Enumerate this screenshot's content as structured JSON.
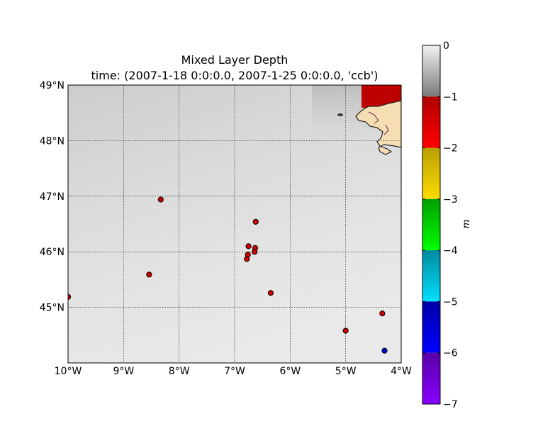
{
  "chart_data": {
    "type": "scatter",
    "title": "Mixed Layer Depth",
    "subtitle": "time: (2007-1-18 0:0:0.0, 2007-1-25 0:0:0.0, 'ccb')",
    "xlim": [
      -10,
      -4
    ],
    "ylim": [
      44,
      49
    ],
    "grid": true,
    "x_ticks": [
      {
        "value": -10,
        "label": "10°W"
      },
      {
        "value": -9,
        "label": "9°W"
      },
      {
        "value": -8,
        "label": "8°W"
      },
      {
        "value": -7,
        "label": "7°W"
      },
      {
        "value": -6,
        "label": "6°W"
      },
      {
        "value": -5,
        "label": "5°W"
      },
      {
        "value": -4,
        "label": "4°W"
      }
    ],
    "y_ticks": [
      {
        "value": 45,
        "label": "45°N"
      },
      {
        "value": 46,
        "label": "46°N"
      },
      {
        "value": 47,
        "label": "47°N"
      },
      {
        "value": 48,
        "label": "48°N"
      },
      {
        "value": 49,
        "label": "49°N"
      }
    ],
    "points": [
      {
        "lon": -10.0,
        "lat": 45.19,
        "value": -1.5
      },
      {
        "lon": -8.54,
        "lat": 45.59,
        "value": -1.5
      },
      {
        "lon": -8.33,
        "lat": 46.94,
        "value": -1.5
      },
      {
        "lon": -6.62,
        "lat": 46.54,
        "value": -1.5
      },
      {
        "lon": -6.75,
        "lat": 46.1,
        "value": -1.5
      },
      {
        "lon": -6.63,
        "lat": 46.07,
        "value": -1.5
      },
      {
        "lon": -6.64,
        "lat": 46.0,
        "value": -1.5
      },
      {
        "lon": -6.76,
        "lat": 45.95,
        "value": -1.5
      },
      {
        "lon": -6.78,
        "lat": 45.87,
        "value": -1.5
      },
      {
        "lon": -6.35,
        "lat": 45.26,
        "value": -1.5
      },
      {
        "lon": -5.0,
        "lat": 44.58,
        "value": -1.5
      },
      {
        "lon": -4.34,
        "lat": 44.89,
        "value": -1.5
      },
      {
        "lon": -4.3,
        "lat": 44.22,
        "value": -5.6
      }
    ],
    "colorbar": {
      "label": "m",
      "range": [
        -7,
        0
      ],
      "ticks": [
        {
          "value": 0,
          "label": "0"
        },
        {
          "value": -1,
          "label": "−1"
        },
        {
          "value": -2,
          "label": "−2"
        },
        {
          "value": -3,
          "label": "−3"
        },
        {
          "value": -4,
          "label": "−4"
        },
        {
          "value": -5,
          "label": "−5"
        },
        {
          "value": -6,
          "label": "−6"
        },
        {
          "value": -7,
          "label": "−7"
        }
      ]
    }
  }
}
